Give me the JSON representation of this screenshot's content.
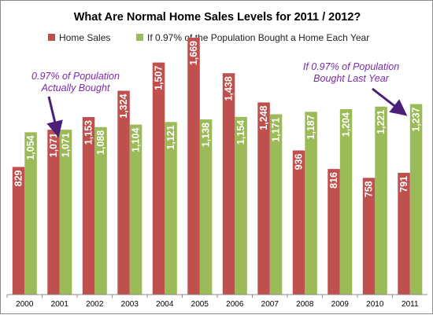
{
  "chart_data": {
    "type": "bar",
    "title": "What Are Normal Home Sales Levels for 2011 / 2012?",
    "categories": [
      "2000",
      "2001",
      "2002",
      "2003",
      "2004",
      "2005",
      "2006",
      "2007",
      "2008",
      "2009",
      "2010",
      "2011"
    ],
    "series": [
      {
        "name": "Home Sales",
        "color": "#c0504d",
        "values": [
          829,
          1071,
          1153,
          1324,
          1507,
          1669,
          1438,
          1248,
          936,
          816,
          758,
          791
        ],
        "labels": [
          "829",
          "1,071",
          "1,153",
          "1,324",
          "1,507",
          "1,669",
          "1,438",
          "1,248",
          "936",
          "816",
          "758",
          "791"
        ]
      },
      {
        "name": "If 0.97% of the Population Bought a Home Each Year",
        "color": "#9bbb59",
        "values": [
          1054,
          1071,
          1088,
          1104,
          1121,
          1138,
          1154,
          1171,
          1187,
          1204,
          1221,
          1237
        ],
        "labels": [
          "1,054",
          "1,071",
          "1,088",
          "1,104",
          "1,121",
          "1,138",
          "1,154",
          "1,171",
          "1,187",
          "1,204",
          "1,221",
          "1,237"
        ]
      }
    ],
    "ylim": [
      0,
      1800
    ],
    "grid": false,
    "legend_position": "top",
    "annotations": [
      {
        "lines": [
          "0.97% of Population",
          "Actually Bought"
        ],
        "points_to": "2001",
        "color": "#7b2aa8"
      },
      {
        "lines": [
          "If 0.97% of Population",
          "Bought Last Year"
        ],
        "points_to": "2011",
        "color": "#7b2aa8"
      }
    ]
  }
}
